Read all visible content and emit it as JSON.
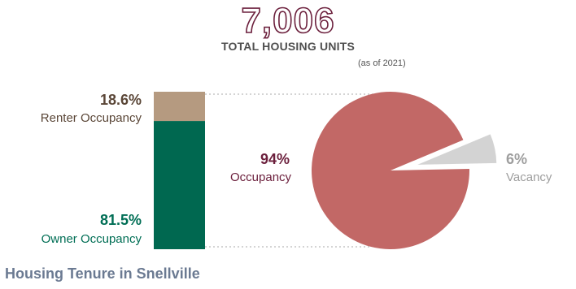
{
  "header": {
    "total": "7,006",
    "total_label": "TOTAL HOUSING UNITS",
    "as_of": "(as of 2021)"
  },
  "footer": {
    "title": "Housing Tenure in Snellville"
  },
  "colors": {
    "renter": "#b59a80",
    "owner": "#006850",
    "occupied": "#c26866",
    "vacant": "#d3d3d3",
    "accent": "#6b1f3c"
  },
  "chart_data": [
    {
      "type": "bar",
      "stacked": true,
      "orientation": "vertical",
      "series": [
        {
          "name": "Owner Occupancy",
          "value_label": "81.5%",
          "values": [
            81.5
          ]
        },
        {
          "name": "Renter Occupancy",
          "value_label": "18.6%",
          "values": [
            18.6
          ]
        }
      ]
    },
    {
      "type": "pie",
      "exploded": "Vacancy",
      "slices": [
        {
          "name": "Occupancy",
          "value": 94,
          "value_label": "94%"
        },
        {
          "name": "Vacancy",
          "value": 6,
          "value_label": "6%"
        }
      ]
    }
  ]
}
